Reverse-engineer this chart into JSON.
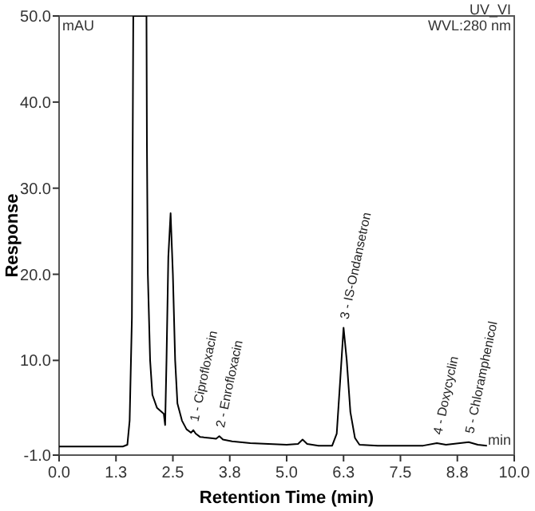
{
  "chart_data": {
    "type": "line",
    "xlabel": "Retention Time (min)",
    "ylabel": "Response",
    "xlim": [
      0,
      10
    ],
    "ylim": [
      -1,
      50
    ],
    "xticks": [
      {
        "value": 0,
        "label": "0.0"
      },
      {
        "value": 1.25,
        "label": "1.3"
      },
      {
        "value": 2.5,
        "label": "2.5"
      },
      {
        "value": 3.75,
        "label": "3.8"
      },
      {
        "value": 5,
        "label": "5.0"
      },
      {
        "value": 6.25,
        "label": "6.3"
      },
      {
        "value": 7.5,
        "label": "7.5"
      },
      {
        "value": 8.75,
        "label": "8.8"
      },
      {
        "value": 10,
        "label": "10.0"
      }
    ],
    "yticks": [
      {
        "value": -1,
        "label": "-1.0"
      },
      {
        "value": 10,
        "label": "10.0"
      },
      {
        "value": 20,
        "label": "20.0"
      },
      {
        "value": 30,
        "label": "30.0"
      },
      {
        "value": 40,
        "label": "40.0"
      },
      {
        "value": 50,
        "label": "50.0"
      }
    ],
    "grid": false,
    "marker": "none",
    "line_style": "solid",
    "series": [
      {
        "color": "#000000",
        "x": [
          0,
          1.4,
          1.5,
          1.55,
          1.6,
          1.63,
          1.92,
          1.93,
          1.95,
          2.0,
          2.05,
          2.15,
          2.3,
          2.33,
          2.36,
          2.4,
          2.45,
          2.5,
          2.55,
          2.6,
          2.7,
          2.8,
          2.9,
          2.95,
          3.0,
          3.1,
          3.3,
          3.45,
          3.52,
          3.6,
          3.8,
          4.2,
          5.0,
          5.25,
          5.35,
          5.45,
          5.7,
          6.0,
          6.1,
          6.18,
          6.25,
          6.32,
          6.4,
          6.5,
          6.6,
          7.0,
          8.0,
          8.3,
          8.5,
          9.0,
          9.2,
          9.4
        ],
        "values": [
          0,
          0,
          0.2,
          3,
          15,
          50,
          50,
          35,
          20,
          10,
          6,
          4.5,
          3.8,
          2.5,
          10,
          22,
          27.1,
          20,
          10,
          5,
          3,
          2,
          1.6,
          1.9,
          1.5,
          1.1,
          1.0,
          0.9,
          1.2,
          0.8,
          0.6,
          0.4,
          0.2,
          0.3,
          0.8,
          0.3,
          0.1,
          0.1,
          1.5,
          8,
          13.8,
          10,
          4,
          1,
          0.2,
          0.1,
          0.1,
          0.4,
          0.2,
          0.5,
          0.2,
          0.1
        ]
      }
    ],
    "annotations": [
      "mAU",
      "UV_VI",
      "WVL:280 nm",
      "min",
      {
        "text": "1 - Ciprofloxacin",
        "x": 2.95,
        "y": 1.9
      },
      {
        "text": "2 - Enrofloxacin",
        "x": 3.52,
        "y": 1.2
      },
      {
        "text": "3 - IS-Ondansetron",
        "x": 6.25,
        "y": 13.8
      },
      {
        "text": "4 - Doxycyclin",
        "x": 8.3,
        "y": 0.4
      },
      {
        "text": "5 - Chloramphenicol",
        "x": 9.0,
        "y": 0.5
      }
    ]
  }
}
